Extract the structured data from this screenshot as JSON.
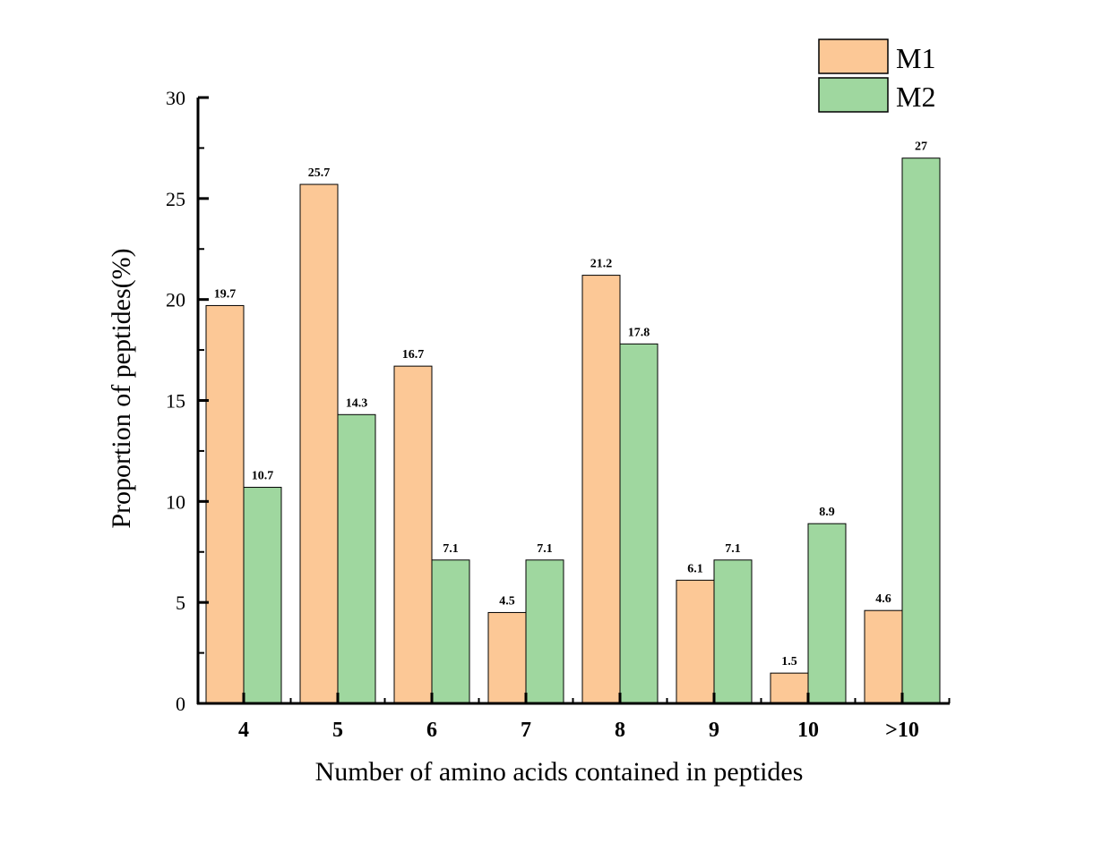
{
  "chart_data": {
    "type": "bar",
    "title": "",
    "xlabel": "Number of amino acids contained in peptides",
    "ylabel": "Proportion of peptides(%)",
    "categories": [
      "4",
      "5",
      "6",
      "7",
      "8",
      "9",
      "10",
      ">10"
    ],
    "series": [
      {
        "name": "M1",
        "color": "#FCC896",
        "values": [
          19.7,
          25.7,
          16.7,
          4.5,
          21.2,
          6.1,
          1.5,
          4.6
        ],
        "labels": [
          "19.7",
          "25.7",
          "16.7",
          "4.5",
          "21.2",
          "6.1",
          "1.5",
          "4.6"
        ]
      },
      {
        "name": "M2",
        "color": "#9FD79F",
        "values": [
          10.7,
          14.3,
          7.1,
          7.1,
          17.8,
          7.1,
          8.9,
          27
        ],
        "labels": [
          "10.7",
          "14.3",
          "7.1",
          "7.1",
          "17.8",
          "7.1",
          "8.9",
          "27"
        ]
      }
    ],
    "ylim": [
      0,
      30
    ],
    "yticks": [
      "0",
      "5",
      "10",
      "15",
      "20",
      "25",
      "30"
    ],
    "grid": false,
    "legend_position": "top-right"
  }
}
